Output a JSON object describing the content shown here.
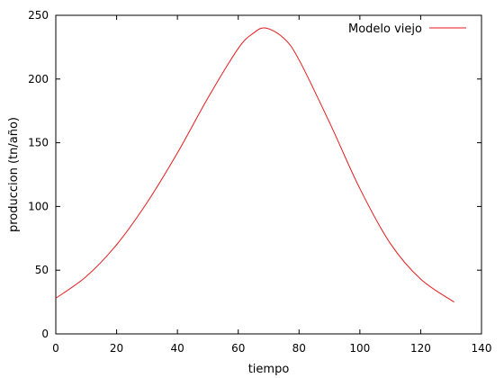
{
  "chart_data": {
    "type": "line",
    "title": "",
    "xlabel": "tiempo",
    "ylabel": "produccion (tn/año)",
    "xlim": [
      0,
      140
    ],
    "ylim": [
      0,
      250
    ],
    "xticks": [
      0,
      20,
      40,
      60,
      80,
      100,
      120,
      140
    ],
    "yticks": [
      0,
      50,
      100,
      150,
      200,
      250
    ],
    "grid": false,
    "legend": "top-right",
    "series": [
      {
        "name": "Modelo viejo",
        "color": "#e41a1c",
        "x": [
          0,
          10,
          20,
          30,
          40,
          50,
          60,
          65,
          69,
          75,
          80,
          90,
          100,
          110,
          120,
          131
        ],
        "y": [
          28,
          45,
          70,
          103,
          142,
          185,
          224,
          236,
          240,
          232,
          215,
          166,
          114,
          71,
          43,
          25
        ]
      }
    ]
  }
}
